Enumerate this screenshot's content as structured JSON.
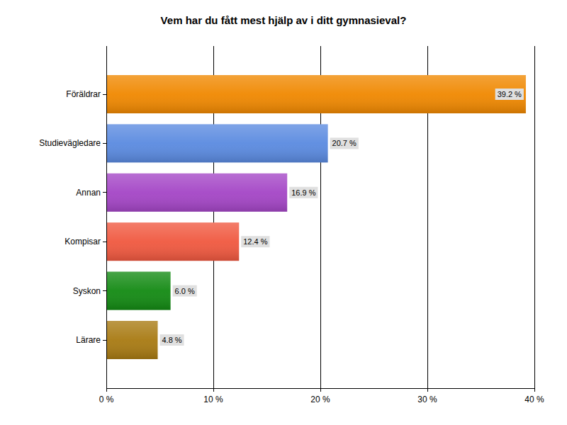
{
  "chart_data": {
    "type": "bar",
    "orientation": "horizontal",
    "title": "Vem har du fått mest hjälp av i ditt gymnasieval?",
    "categories": [
      "Föräldrar",
      "Studievägledare",
      "Annan",
      "Kompisar",
      "Syskon",
      "Lärare"
    ],
    "values": [
      39.2,
      20.7,
      16.9,
      12.4,
      6.0,
      4.8
    ],
    "value_labels": [
      "39.2 %",
      "20.7 %",
      "16.9 %",
      "12.4 %",
      "6.0 %",
      "4.8 %"
    ],
    "colors": [
      "#f08800",
      "#5a8ae0",
      "#a445c6",
      "#f0583f",
      "#138a13",
      "#a87a12"
    ],
    "xlim": [
      0,
      40
    ],
    "xticks": [
      {
        "value": 0,
        "label": "0 %"
      },
      {
        "value": 10,
        "label": "10 %"
      },
      {
        "value": 20,
        "label": "20 %"
      },
      {
        "value": 30,
        "label": "30 %"
      },
      {
        "value": 40,
        "label": "40 %"
      }
    ],
    "grid": true,
    "data_labels": true
  }
}
